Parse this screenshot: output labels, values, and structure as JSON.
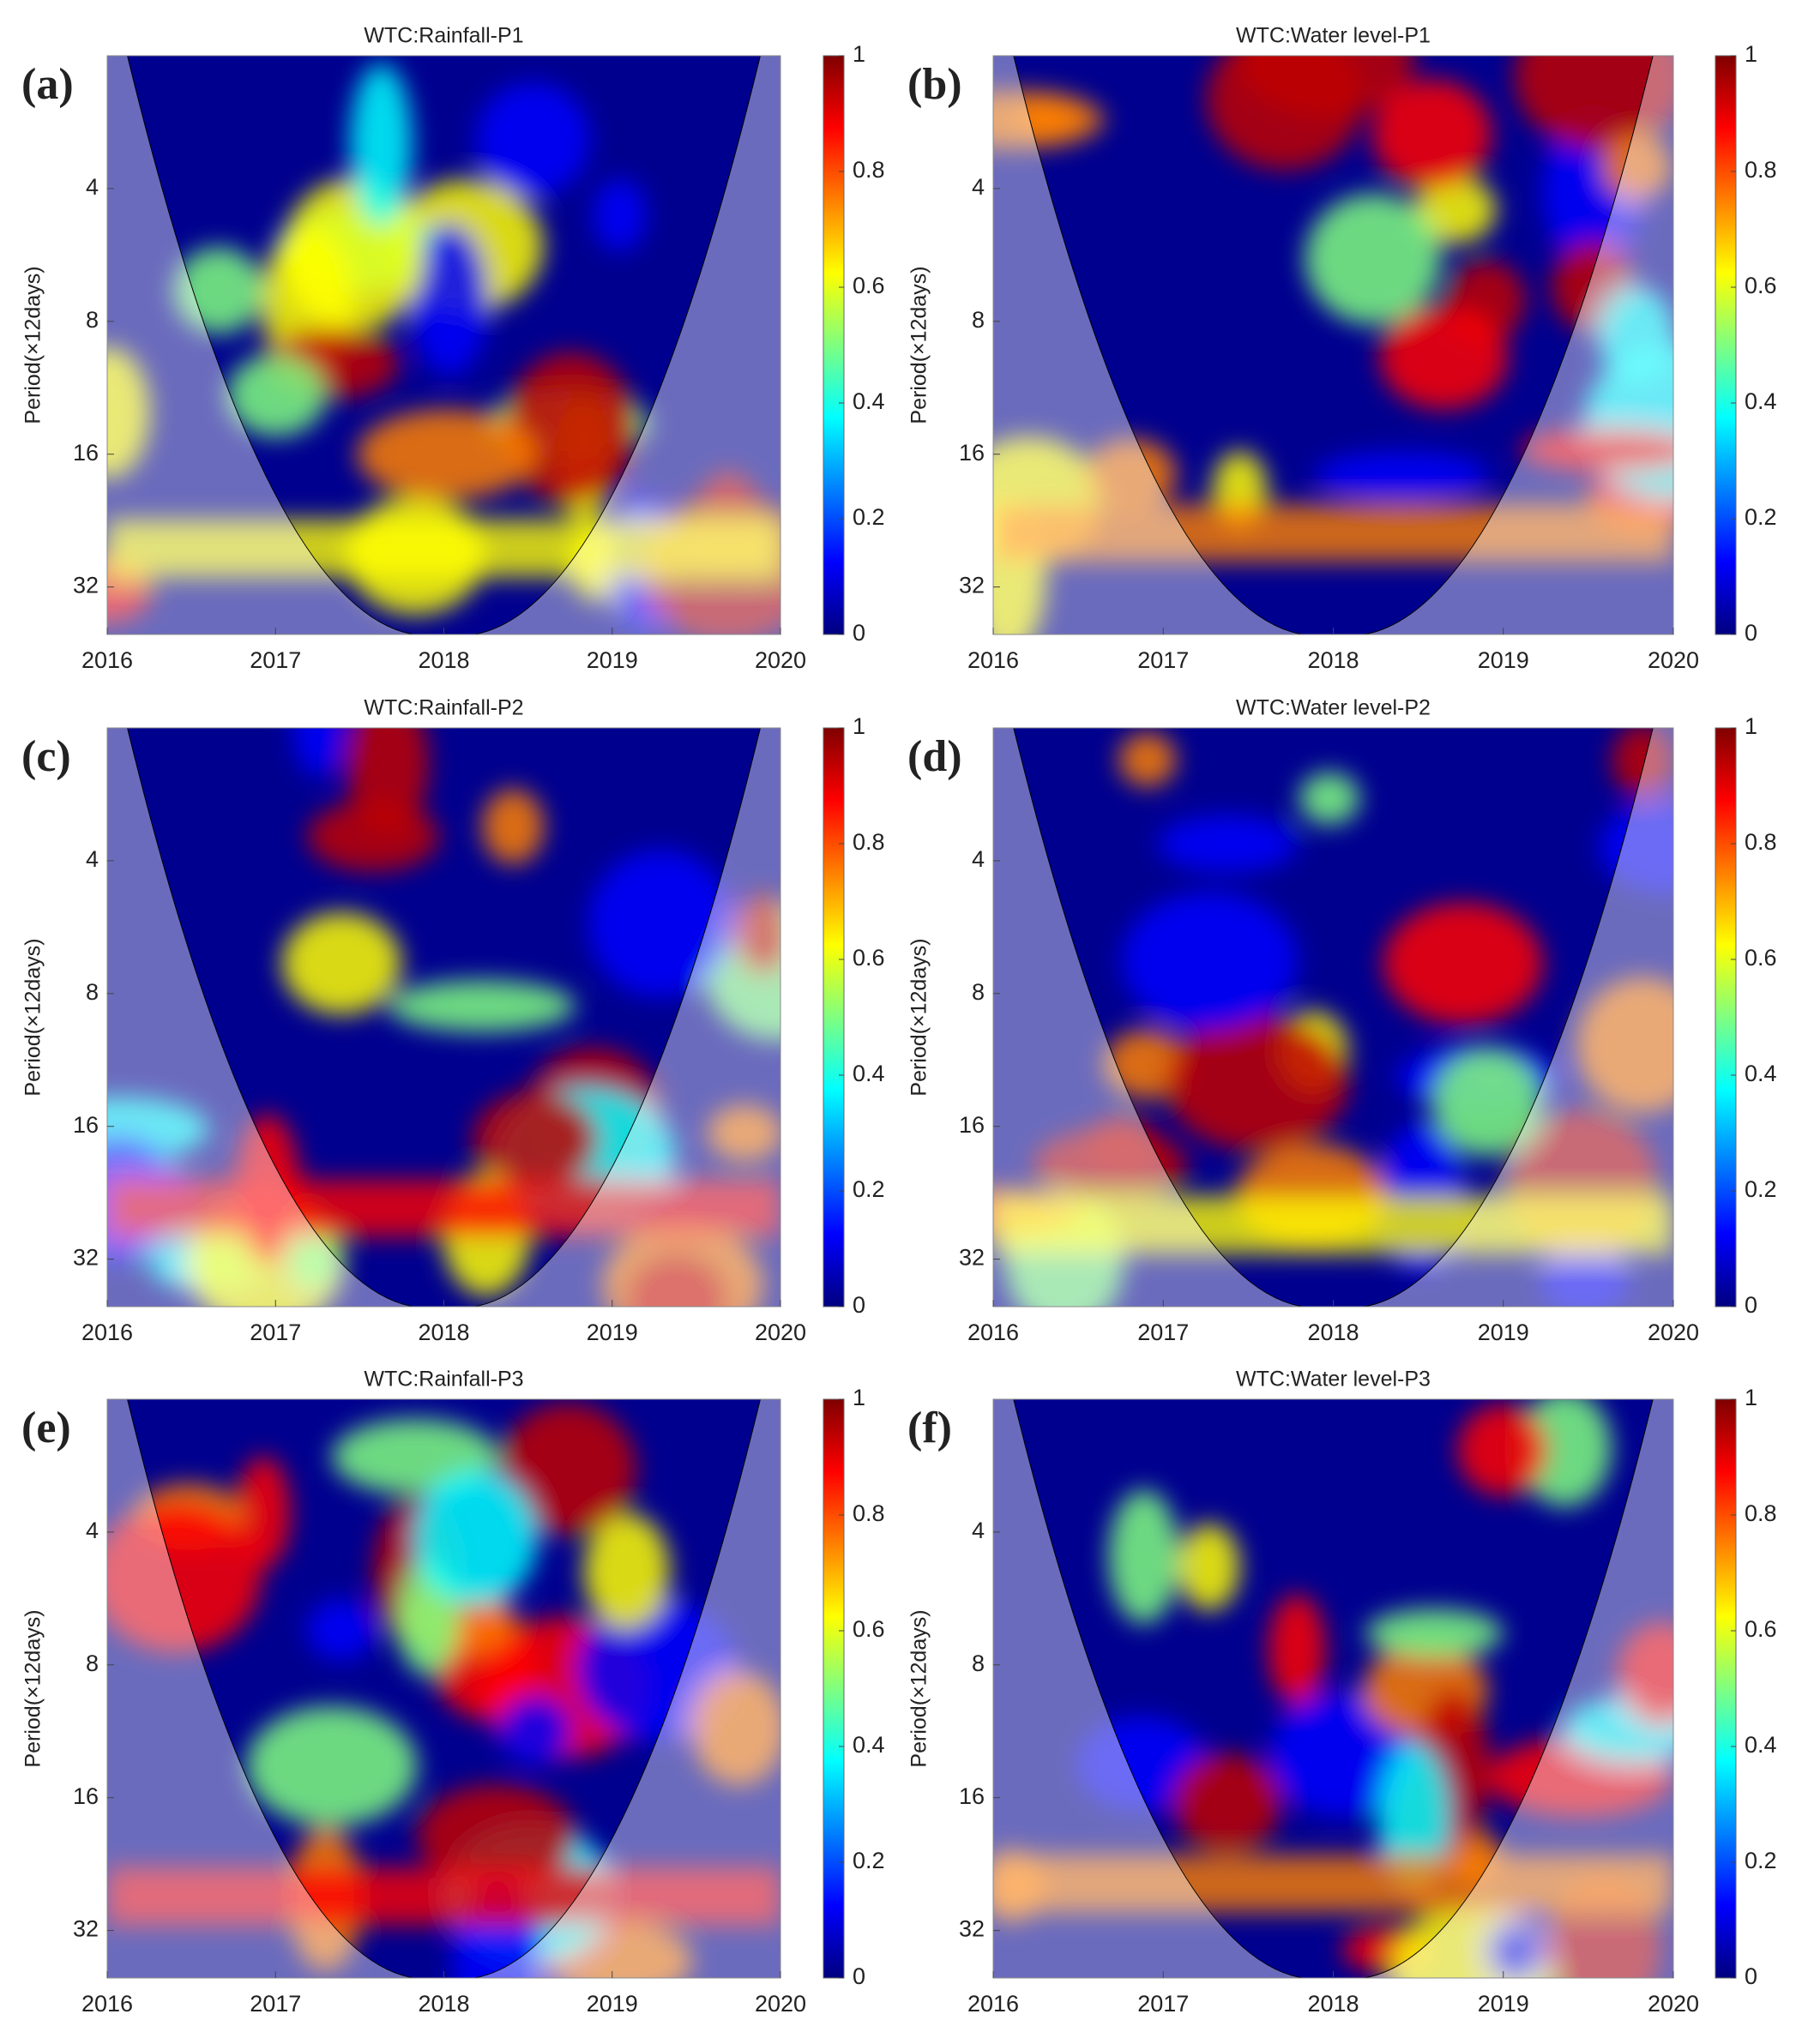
{
  "chart_data": [
    {
      "type": "heatmap",
      "panel": "(a)",
      "title": "WTC:Rainfall-P1",
      "ylabel": "Period(×12days)",
      "xlim": [
        2016,
        2020
      ],
      "xticks": [
        2016,
        2017,
        2018,
        2019,
        2020
      ],
      "ylim": [
        2,
        41
      ],
      "yticks": [
        4,
        8,
        16,
        32
      ],
      "yscale": "log",
      "yreverse": true,
      "colormap": "jet",
      "clim": [
        0,
        1
      ],
      "cticks": [
        0,
        0.2,
        0.4,
        0.6,
        0.8,
        1
      ]
    },
    {
      "type": "heatmap",
      "panel": "(b)",
      "title": "WTC:Water level-P1",
      "ylabel": "Period(×12days)",
      "xlim": [
        2016,
        2020
      ],
      "xticks": [
        2016,
        2017,
        2018,
        2019,
        2020
      ],
      "ylim": [
        2,
        41
      ],
      "yticks": [
        4,
        8,
        16,
        32
      ],
      "yscale": "log",
      "yreverse": true,
      "colormap": "jet",
      "clim": [
        0,
        1
      ],
      "cticks": [
        0,
        0.2,
        0.4,
        0.6,
        0.8,
        1
      ]
    },
    {
      "type": "heatmap",
      "panel": "(c)",
      "title": "WTC:Rainfall-P2",
      "ylabel": "Period(×12days)",
      "xlim": [
        2016,
        2020
      ],
      "xticks": [
        2016,
        2017,
        2018,
        2019,
        2020
      ],
      "ylim": [
        2,
        41
      ],
      "yticks": [
        4,
        8,
        16,
        32
      ],
      "yscale": "log",
      "yreverse": true,
      "colormap": "jet",
      "clim": [
        0,
        1
      ],
      "cticks": [
        0,
        0.2,
        0.4,
        0.6,
        0.8,
        1
      ]
    },
    {
      "type": "heatmap",
      "panel": "(d)",
      "title": "WTC:Water level-P2",
      "ylabel": "Period(×12days)",
      "xlim": [
        2016,
        2020
      ],
      "xticks": [
        2016,
        2017,
        2018,
        2019,
        2020
      ],
      "ylim": [
        2,
        41
      ],
      "yticks": [
        4,
        8,
        16,
        32
      ],
      "yscale": "log",
      "yreverse": true,
      "colormap": "jet",
      "clim": [
        0,
        1
      ],
      "cticks": [
        0,
        0.2,
        0.4,
        0.6,
        0.8,
        1
      ]
    },
    {
      "type": "heatmap",
      "panel": "(e)",
      "title": "WTC:Rainfall-P3",
      "ylabel": "Period(×12days)",
      "xlim": [
        2016,
        2020
      ],
      "xticks": [
        2016,
        2017,
        2018,
        2019,
        2020
      ],
      "ylim": [
        2,
        41
      ],
      "yticks": [
        4,
        8,
        16,
        32
      ],
      "yscale": "log",
      "yreverse": true,
      "colormap": "jet",
      "clim": [
        0,
        1
      ],
      "cticks": [
        0,
        0.2,
        0.4,
        0.6,
        0.8,
        1
      ]
    },
    {
      "type": "heatmap",
      "panel": "(f)",
      "title": "WTC:Water level-P3",
      "ylabel": "Period(×12days)",
      "xlim": [
        2016,
        2020
      ],
      "xticks": [
        2016,
        2017,
        2018,
        2019,
        2020
      ],
      "ylim": [
        2,
        41
      ],
      "yticks": [
        4,
        8,
        16,
        32
      ],
      "yscale": "log",
      "yreverse": true,
      "colormap": "jet",
      "clim": [
        0,
        1
      ],
      "cticks": [
        0,
        0.2,
        0.4,
        0.6,
        0.8,
        1
      ]
    }
  ]
}
